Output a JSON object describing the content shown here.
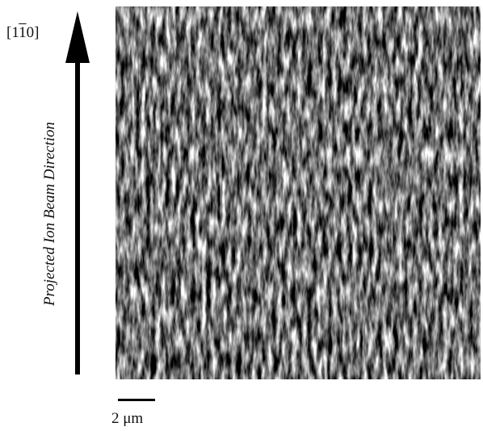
{
  "orientation": {
    "prefix": "[1",
    "bar_digit": "1",
    "suffix": "0]"
  },
  "axis_caption": "Projected Ion Beam Direction",
  "scale_bar": {
    "label": "2 μm"
  },
  "image": {
    "description_icon": "afm-surface-ripple-image",
    "colors": {
      "dark": "#3a3a3a",
      "mid": "#8a8a8a",
      "light": "#f0f0f0"
    }
  }
}
